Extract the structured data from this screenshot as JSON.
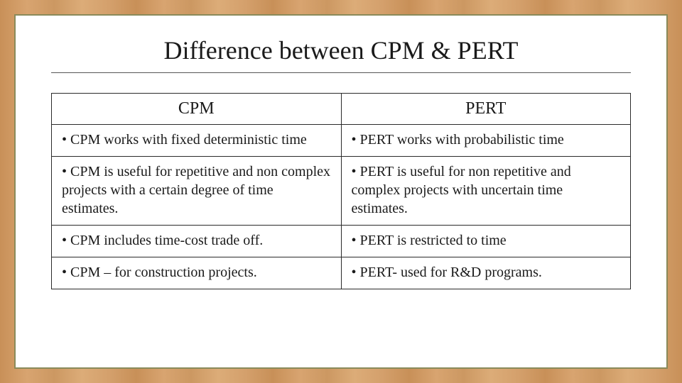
{
  "slide": {
    "title": "Difference between CPM & PERT",
    "background_wood_colors": [
      "#c89058",
      "#d8a470",
      "#cc9862",
      "#dcac78",
      "#d4a06c"
    ],
    "inner_border_color": "#8a8a5a",
    "table": {
      "type": "table",
      "border_color": "#2a2a2a",
      "header_fontsize": 24,
      "cell_fontsize": 20,
      "columns": [
        "CPM",
        "PERT"
      ],
      "rows": [
        [
          "• CPM works with fixed deterministic time",
          "• PERT works with probabilistic time"
        ],
        [
          "• CPM is useful for repetitive and non complex projects with a certain degree of time estimates.",
          "• PERT is useful for non repetitive and complex projects with uncertain time estimates."
        ],
        [
          "• CPM includes time-cost trade off.",
          "• PERT is restricted to time"
        ],
        [
          "• CPM – for construction projects.",
          "• PERT- used for R&D programs."
        ]
      ]
    }
  }
}
